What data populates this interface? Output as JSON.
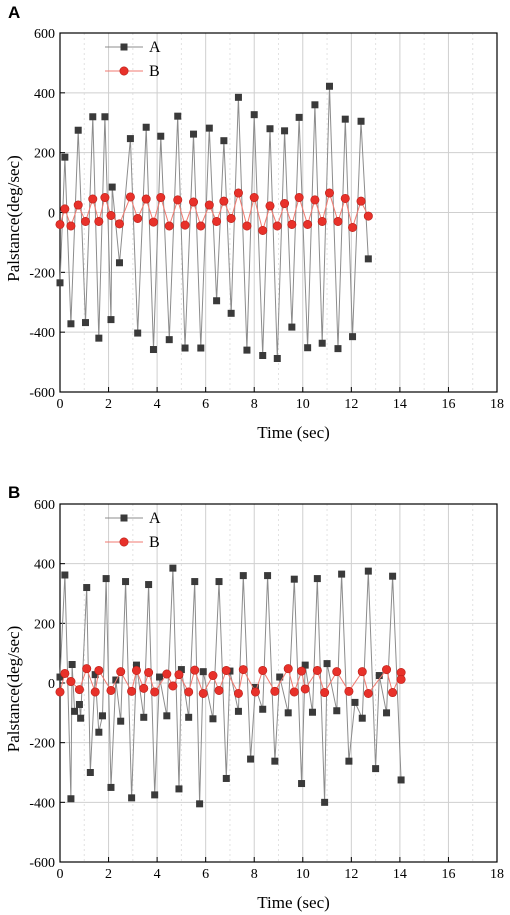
{
  "colors": {
    "series_a_marker": "#3a3a3a",
    "series_a_line": "#8c8c8c",
    "series_b_marker": "#e8312a",
    "series_b_line": "#f07a70",
    "grid": "#cfcfcf",
    "frame": "#000000"
  },
  "chart_data": [
    {
      "type": "line",
      "panel_label": "A",
      "title": "",
      "xlabel": "Time (sec)",
      "ylabel": "Palstance(deg/sec)",
      "xlim": [
        0,
        18
      ],
      "ylim": [
        -600,
        600
      ],
      "xticks": [
        0,
        2,
        4,
        6,
        8,
        10,
        12,
        14,
        16,
        18
      ],
      "yticks": [
        -600,
        -400,
        -200,
        0,
        200,
        400,
        600
      ],
      "grid": true,
      "legend": "top-left",
      "series": [
        {
          "name": "A",
          "marker": "square",
          "points": [
            [
              0,
              -235
            ],
            [
              0.2,
              185
            ],
            [
              0.45,
              -372
            ],
            [
              0.75,
              275
            ],
            [
              1.05,
              -368
            ],
            [
              1.35,
              320
            ],
            [
              1.6,
              -420
            ],
            [
              1.85,
              320
            ],
            [
              2.1,
              -358
            ],
            [
              2.15,
              85
            ],
            [
              2.45,
              -168
            ],
            [
              2.9,
              247
            ],
            [
              3.2,
              -403
            ],
            [
              3.55,
              285
            ],
            [
              3.85,
              -458
            ],
            [
              4.15,
              255
            ],
            [
              4.5,
              -425
            ],
            [
              4.85,
              322
            ],
            [
              5.15,
              -453
            ],
            [
              5.5,
              262
            ],
            [
              5.8,
              -453
            ],
            [
              6.15,
              282
            ],
            [
              6.45,
              -295
            ],
            [
              6.75,
              240
            ],
            [
              7.05,
              -337
            ],
            [
              7.35,
              385
            ],
            [
              7.7,
              -460
            ],
            [
              8.0,
              327
            ],
            [
              8.35,
              -478
            ],
            [
              8.65,
              280
            ],
            [
              8.95,
              -488
            ],
            [
              9.25,
              273
            ],
            [
              9.55,
              -383
            ],
            [
              9.85,
              318
            ],
            [
              10.2,
              -452
            ],
            [
              10.5,
              360
            ],
            [
              10.8,
              -437
            ],
            [
              11.1,
              422
            ],
            [
              11.45,
              -455
            ],
            [
              11.75,
              312
            ],
            [
              12.05,
              -415
            ],
            [
              12.4,
              305
            ],
            [
              12.7,
              -155
            ]
          ]
        },
        {
          "name": "B",
          "marker": "circle",
          "points": [
            [
              0,
              -40
            ],
            [
              0.2,
              12
            ],
            [
              0.45,
              -45
            ],
            [
              0.75,
              25
            ],
            [
              1.05,
              -30
            ],
            [
              1.35,
              45
            ],
            [
              1.6,
              -30
            ],
            [
              1.85,
              50
            ],
            [
              2.1,
              -10
            ],
            [
              2.45,
              -38
            ],
            [
              2.9,
              52
            ],
            [
              3.2,
              -20
            ],
            [
              3.55,
              45
            ],
            [
              3.85,
              -32
            ],
            [
              4.15,
              50
            ],
            [
              4.5,
              -45
            ],
            [
              4.85,
              42
            ],
            [
              5.15,
              -42
            ],
            [
              5.5,
              35
            ],
            [
              5.8,
              -45
            ],
            [
              6.15,
              25
            ],
            [
              6.45,
              -30
            ],
            [
              6.75,
              38
            ],
            [
              7.05,
              -20
            ],
            [
              7.35,
              65
            ],
            [
              7.7,
              -45
            ],
            [
              8.0,
              50
            ],
            [
              8.35,
              -60
            ],
            [
              8.65,
              22
            ],
            [
              8.95,
              -45
            ],
            [
              9.25,
              30
            ],
            [
              9.55,
              -40
            ],
            [
              9.85,
              50
            ],
            [
              10.2,
              -40
            ],
            [
              10.5,
              42
            ],
            [
              10.8,
              -30
            ],
            [
              11.1,
              65
            ],
            [
              11.45,
              -30
            ],
            [
              11.75,
              47
            ],
            [
              12.05,
              -50
            ],
            [
              12.4,
              38
            ],
            [
              12.7,
              -12
            ]
          ]
        }
      ]
    },
    {
      "type": "line",
      "panel_label": "B",
      "title": "",
      "xlabel": "Time (sec)",
      "ylabel": "Palstance(deg/sec)",
      "xlim": [
        0,
        18
      ],
      "ylim": [
        -600,
        600
      ],
      "xticks": [
        0,
        2,
        4,
        6,
        8,
        10,
        12,
        14,
        16,
        18
      ],
      "yticks": [
        -600,
        -400,
        -200,
        0,
        200,
        400,
        600
      ],
      "grid": true,
      "legend": "top-left",
      "series": [
        {
          "name": "A",
          "marker": "square",
          "points": [
            [
              0,
              20
            ],
            [
              0.2,
              362
            ],
            [
              0.45,
              -388
            ],
            [
              0.5,
              62
            ],
            [
              0.6,
              -95
            ],
            [
              0.8,
              -72
            ],
            [
              0.85,
              -118
            ],
            [
              1.1,
              320
            ],
            [
              1.25,
              -300
            ],
            [
              1.45,
              28
            ],
            [
              1.6,
              -165
            ],
            [
              1.75,
              -110
            ],
            [
              1.9,
              350
            ],
            [
              2.1,
              -350
            ],
            [
              2.3,
              10
            ],
            [
              2.5,
              -128
            ],
            [
              2.7,
              340
            ],
            [
              2.95,
              -385
            ],
            [
              3.15,
              60
            ],
            [
              3.45,
              -115
            ],
            [
              3.65,
              330
            ],
            [
              3.9,
              -375
            ],
            [
              4.1,
              20
            ],
            [
              4.4,
              -110
            ],
            [
              4.65,
              385
            ],
            [
              4.9,
              -355
            ],
            [
              5.0,
              45
            ],
            [
              5.3,
              -115
            ],
            [
              5.55,
              340
            ],
            [
              5.75,
              -405
            ],
            [
              5.9,
              38
            ],
            [
              6.3,
              -120
            ],
            [
              6.55,
              340
            ],
            [
              6.85,
              -320
            ],
            [
              7.0,
              40
            ],
            [
              7.35,
              -95
            ],
            [
              7.55,
              360
            ],
            [
              7.85,
              -255
            ],
            [
              8.05,
              -15
            ],
            [
              8.35,
              -88
            ],
            [
              8.55,
              360
            ],
            [
              8.85,
              -262
            ],
            [
              9.05,
              20
            ],
            [
              9.4,
              -100
            ],
            [
              9.65,
              348
            ],
            [
              9.95,
              -337
            ],
            [
              10.1,
              60
            ],
            [
              10.4,
              -98
            ],
            [
              10.6,
              350
            ],
            [
              10.9,
              -400
            ],
            [
              11.0,
              65
            ],
            [
              11.4,
              -93
            ],
            [
              11.6,
              365
            ],
            [
              11.9,
              -262
            ],
            [
              12.15,
              -65
            ],
            [
              12.45,
              -118
            ],
            [
              12.7,
              375
            ],
            [
              13.0,
              -287
            ],
            [
              13.15,
              25
            ],
            [
              13.45,
              -100
            ],
            [
              13.7,
              358
            ],
            [
              14.05,
              -325
            ]
          ]
        },
        {
          "name": "B",
          "marker": "circle",
          "points": [
            [
              0,
              -30
            ],
            [
              0.2,
              32
            ],
            [
              0.45,
              5
            ],
            [
              0.8,
              -22
            ],
            [
              1.1,
              48
            ],
            [
              1.45,
              -30
            ],
            [
              1.6,
              42
            ],
            [
              2.1,
              -25
            ],
            [
              2.5,
              38
            ],
            [
              2.95,
              -28
            ],
            [
              3.15,
              42
            ],
            [
              3.45,
              -18
            ],
            [
              3.65,
              35
            ],
            [
              3.9,
              -30
            ],
            [
              4.4,
              30
            ],
            [
              4.65,
              -10
            ],
            [
              4.9,
              28
            ],
            [
              5.3,
              -30
            ],
            [
              5.55,
              43
            ],
            [
              5.9,
              -35
            ],
            [
              6.3,
              25
            ],
            [
              6.55,
              -25
            ],
            [
              6.85,
              42
            ],
            [
              7.35,
              -35
            ],
            [
              7.55,
              45
            ],
            [
              8.05,
              -30
            ],
            [
              8.35,
              42
            ],
            [
              8.85,
              -28
            ],
            [
              9.4,
              48
            ],
            [
              9.65,
              -30
            ],
            [
              9.95,
              40
            ],
            [
              10.1,
              -20
            ],
            [
              10.6,
              42
            ],
            [
              10.9,
              -32
            ],
            [
              11.4,
              38
            ],
            [
              11.9,
              -28
            ],
            [
              12.45,
              38
            ],
            [
              12.7,
              -35
            ],
            [
              13.45,
              45
            ],
            [
              13.7,
              -32
            ],
            [
              14.05,
              35
            ],
            [
              14.05,
              12
            ]
          ]
        }
      ]
    }
  ]
}
